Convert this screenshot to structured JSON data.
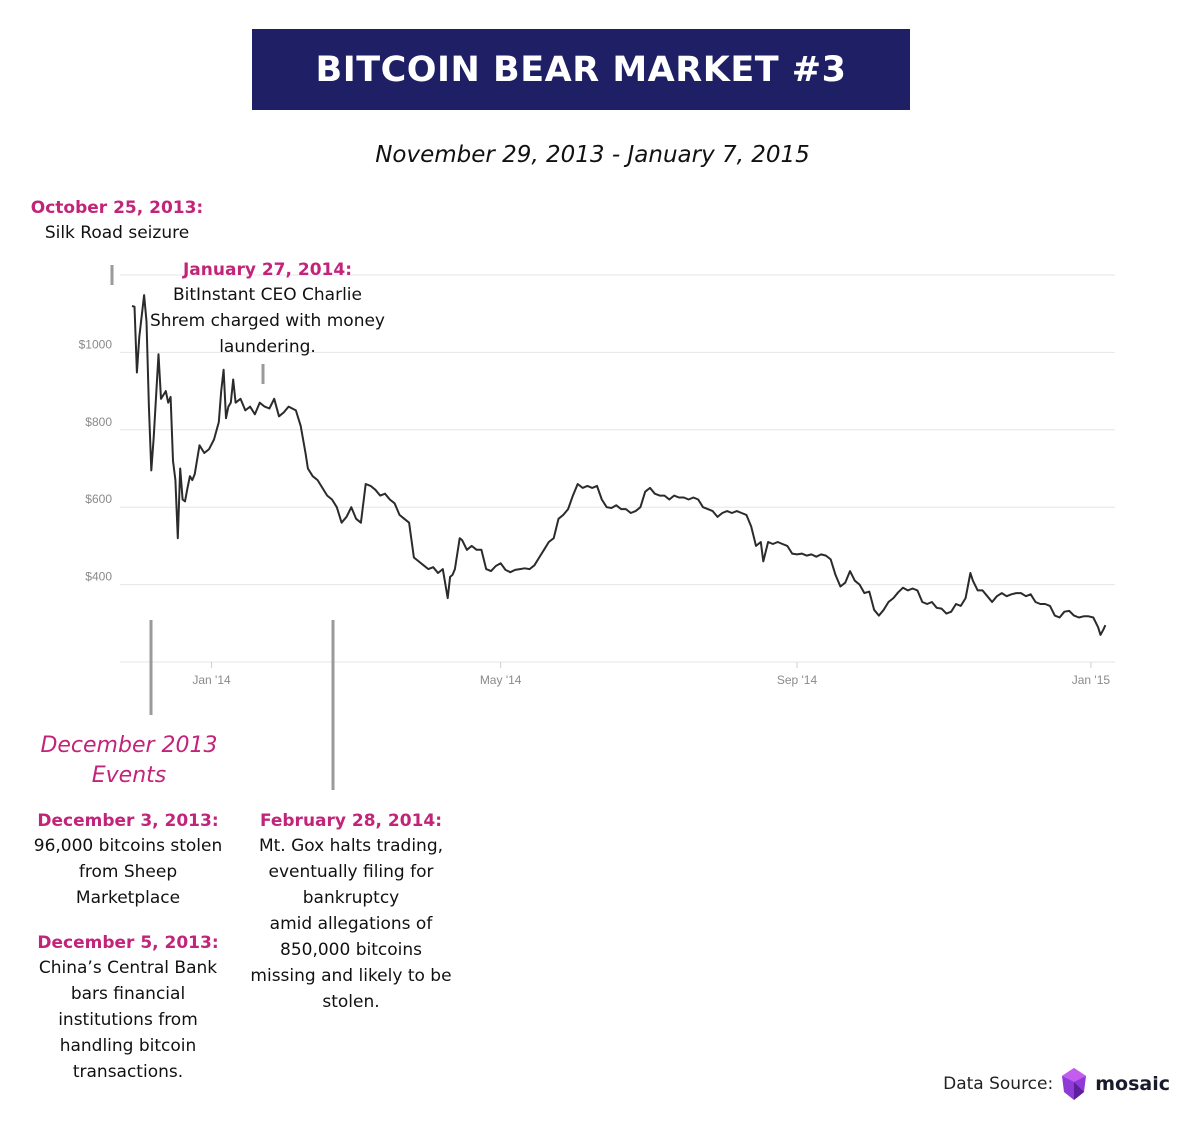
{
  "header": {
    "title": "BITCOIN BEAR MARKET #3",
    "subtitle": "November 29, 2013 - January 7, 2015"
  },
  "annotations": {
    "silk_road": {
      "date": "October 25, 2013:",
      "text": "Silk Road seizure"
    },
    "bitinstant": {
      "date": "January 27, 2014:",
      "text": "BitInstant CEO Charlie\nShrem charged with money\nlaundering."
    },
    "section_title": "December 2013\nEvents",
    "sheep": {
      "date": "December 3, 2013:",
      "text": "96,000 bitcoins stolen\nfrom Sheep\nMarketplace"
    },
    "china": {
      "date": "December 5, 2013:",
      "text": "China’s Central Bank\nbars financial\ninstitutions from\nhandling bitcoin\ntransactions."
    },
    "mtgox": {
      "date": "February 28,  2014:",
      "text": "Mt. Gox halts trading,\neventually filing for\nbankruptcy\namid allegations of\n850,000 bitcoins\nmissing and likely to be\nstolen."
    }
  },
  "footer": {
    "source_label": "Data Source:",
    "brand": "mosaic"
  },
  "colors": {
    "banner": "#1f1f66",
    "accent": "#c2247a",
    "line": "#2b2b2b",
    "grid": "#e6e6e6",
    "marker": "#9a9a9a",
    "logo": "#8e3ad6"
  },
  "chart_data": {
    "type": "line",
    "title": "",
    "xlabel": "",
    "ylabel": "",
    "x_ticks": [
      "Jan '14",
      "May '14",
      "Sep '14",
      "Jan '15"
    ],
    "x_tick_dates": [
      "2014-01-01",
      "2014-05-01",
      "2014-09-01",
      "2015-01-01"
    ],
    "y_ticks": [
      "$400",
      "$600",
      "$800",
      "$1000"
    ],
    "y_tick_values": [
      400,
      600,
      800,
      1000
    ],
    "xlim": [
      "2013-11-24",
      "2015-01-11"
    ],
    "ylim": [
      200,
      1200
    ],
    "grid": true,
    "series": [
      {
        "name": "",
        "points": [
          [
            "2013-11-29",
            1120
          ],
          [
            "2013-11-30",
            1118
          ],
          [
            "2013-12-01",
            948
          ],
          [
            "2013-12-02",
            1040
          ],
          [
            "2013-12-04",
            1148
          ],
          [
            "2013-12-05",
            1080
          ],
          [
            "2013-12-06",
            860
          ],
          [
            "2013-12-07",
            695
          ],
          [
            "2013-12-08",
            780
          ],
          [
            "2013-12-10",
            995
          ],
          [
            "2013-12-11",
            880
          ],
          [
            "2013-12-13",
            900
          ],
          [
            "2013-12-14",
            870
          ],
          [
            "2013-12-15",
            885
          ],
          [
            "2013-12-16",
            720
          ],
          [
            "2013-12-17",
            670
          ],
          [
            "2013-12-18",
            520
          ],
          [
            "2013-12-19",
            700
          ],
          [
            "2013-12-20",
            620
          ],
          [
            "2013-12-21",
            615
          ],
          [
            "2013-12-22",
            650
          ],
          [
            "2013-12-23",
            680
          ],
          [
            "2013-12-24",
            670
          ],
          [
            "2013-12-25",
            685
          ],
          [
            "2013-12-27",
            760
          ],
          [
            "2013-12-29",
            740
          ],
          [
            "2013-12-31",
            750
          ],
          [
            "2014-01-02",
            775
          ],
          [
            "2014-01-04",
            820
          ],
          [
            "2014-01-05",
            900
          ],
          [
            "2014-01-06",
            955
          ],
          [
            "2014-01-07",
            830
          ],
          [
            "2014-01-08",
            860
          ],
          [
            "2014-01-09",
            870
          ],
          [
            "2014-01-10",
            930
          ],
          [
            "2014-01-11",
            870
          ],
          [
            "2014-01-13",
            880
          ],
          [
            "2014-01-15",
            850
          ],
          [
            "2014-01-17",
            860
          ],
          [
            "2014-01-19",
            840
          ],
          [
            "2014-01-21",
            870
          ],
          [
            "2014-01-23",
            860
          ],
          [
            "2014-01-25",
            855
          ],
          [
            "2014-01-27",
            880
          ],
          [
            "2014-01-29",
            835
          ],
          [
            "2014-01-31",
            845
          ],
          [
            "2014-02-02",
            860
          ],
          [
            "2014-02-05",
            850
          ],
          [
            "2014-02-07",
            810
          ],
          [
            "2014-02-09",
            740
          ],
          [
            "2014-02-10",
            700
          ],
          [
            "2014-02-12",
            680
          ],
          [
            "2014-02-14",
            670
          ],
          [
            "2014-02-16",
            650
          ],
          [
            "2014-02-18",
            630
          ],
          [
            "2014-02-20",
            620
          ],
          [
            "2014-02-22",
            600
          ],
          [
            "2014-02-24",
            560
          ],
          [
            "2014-02-26",
            575
          ],
          [
            "2014-02-28",
            600
          ],
          [
            "2014-03-02",
            570
          ],
          [
            "2014-03-04",
            560
          ],
          [
            "2014-03-06",
            660
          ],
          [
            "2014-03-08",
            655
          ],
          [
            "2014-03-10",
            645
          ],
          [
            "2014-03-12",
            630
          ],
          [
            "2014-03-14",
            635
          ],
          [
            "2014-03-16",
            620
          ],
          [
            "2014-03-18",
            610
          ],
          [
            "2014-03-20",
            580
          ],
          [
            "2014-03-22",
            570
          ],
          [
            "2014-03-24",
            560
          ],
          [
            "2014-03-26",
            470
          ],
          [
            "2014-03-28",
            460
          ],
          [
            "2014-03-30",
            450
          ],
          [
            "2014-04-01",
            440
          ],
          [
            "2014-04-03",
            445
          ],
          [
            "2014-04-05",
            430
          ],
          [
            "2014-04-07",
            440
          ],
          [
            "2014-04-09",
            365
          ],
          [
            "2014-04-10",
            420
          ],
          [
            "2014-04-11",
            425
          ],
          [
            "2014-04-12",
            440
          ],
          [
            "2014-04-14",
            520
          ],
          [
            "2014-04-15",
            515
          ],
          [
            "2014-04-17",
            490
          ],
          [
            "2014-04-19",
            500
          ],
          [
            "2014-04-21",
            490
          ],
          [
            "2014-04-23",
            490
          ],
          [
            "2014-04-25",
            440
          ],
          [
            "2014-04-27",
            435
          ],
          [
            "2014-04-29",
            448
          ],
          [
            "2014-05-01",
            455
          ],
          [
            "2014-05-03",
            438
          ],
          [
            "2014-05-05",
            432
          ],
          [
            "2014-05-07",
            438
          ],
          [
            "2014-05-09",
            440
          ],
          [
            "2014-05-11",
            442
          ],
          [
            "2014-05-13",
            440
          ],
          [
            "2014-05-15",
            450
          ],
          [
            "2014-05-17",
            470
          ],
          [
            "2014-05-19",
            490
          ],
          [
            "2014-05-21",
            510
          ],
          [
            "2014-05-23",
            520
          ],
          [
            "2014-05-25",
            570
          ],
          [
            "2014-05-27",
            580
          ],
          [
            "2014-05-29",
            595
          ],
          [
            "2014-05-31",
            630
          ],
          [
            "2014-06-02",
            660
          ],
          [
            "2014-06-04",
            650
          ],
          [
            "2014-06-06",
            655
          ],
          [
            "2014-06-08",
            650
          ],
          [
            "2014-06-10",
            655
          ],
          [
            "2014-06-12",
            620
          ],
          [
            "2014-06-14",
            600
          ],
          [
            "2014-06-16",
            598
          ],
          [
            "2014-06-18",
            605
          ],
          [
            "2014-06-20",
            595
          ],
          [
            "2014-06-22",
            595
          ],
          [
            "2014-06-24",
            585
          ],
          [
            "2014-06-26",
            590
          ],
          [
            "2014-06-28",
            600
          ],
          [
            "2014-06-30",
            640
          ],
          [
            "2014-07-02",
            650
          ],
          [
            "2014-07-04",
            635
          ],
          [
            "2014-07-06",
            630
          ],
          [
            "2014-07-08",
            630
          ],
          [
            "2014-07-10",
            620
          ],
          [
            "2014-07-12",
            630
          ],
          [
            "2014-07-14",
            625
          ],
          [
            "2014-07-16",
            625
          ],
          [
            "2014-07-18",
            620
          ],
          [
            "2014-07-20",
            625
          ],
          [
            "2014-07-22",
            620
          ],
          [
            "2014-07-24",
            600
          ],
          [
            "2014-07-26",
            595
          ],
          [
            "2014-07-28",
            590
          ],
          [
            "2014-07-30",
            575
          ],
          [
            "2014-08-01",
            585
          ],
          [
            "2014-08-03",
            590
          ],
          [
            "2014-08-05",
            585
          ],
          [
            "2014-08-07",
            590
          ],
          [
            "2014-08-09",
            585
          ],
          [
            "2014-08-11",
            580
          ],
          [
            "2014-08-13",
            550
          ],
          [
            "2014-08-15",
            500
          ],
          [
            "2014-08-17",
            510
          ],
          [
            "2014-08-18",
            460
          ],
          [
            "2014-08-20",
            510
          ],
          [
            "2014-08-22",
            505
          ],
          [
            "2014-08-24",
            510
          ],
          [
            "2014-08-26",
            505
          ],
          [
            "2014-08-28",
            500
          ],
          [
            "2014-08-30",
            480
          ],
          [
            "2014-09-01",
            478
          ],
          [
            "2014-09-03",
            480
          ],
          [
            "2014-09-05",
            475
          ],
          [
            "2014-09-07",
            478
          ],
          [
            "2014-09-09",
            472
          ],
          [
            "2014-09-11",
            478
          ],
          [
            "2014-09-13",
            475
          ],
          [
            "2014-09-15",
            465
          ],
          [
            "2014-09-17",
            425
          ],
          [
            "2014-09-19",
            395
          ],
          [
            "2014-09-21",
            405
          ],
          [
            "2014-09-23",
            435
          ],
          [
            "2014-09-25",
            410
          ],
          [
            "2014-09-27",
            400
          ],
          [
            "2014-09-29",
            378
          ],
          [
            "2014-10-01",
            382
          ],
          [
            "2014-10-03",
            335
          ],
          [
            "2014-10-05",
            320
          ],
          [
            "2014-10-07",
            335
          ],
          [
            "2014-10-09",
            355
          ],
          [
            "2014-10-11",
            365
          ],
          [
            "2014-10-13",
            380
          ],
          [
            "2014-10-15",
            392
          ],
          [
            "2014-10-17",
            385
          ],
          [
            "2014-10-19",
            390
          ],
          [
            "2014-10-21",
            385
          ],
          [
            "2014-10-23",
            355
          ],
          [
            "2014-10-25",
            350
          ],
          [
            "2014-10-27",
            355
          ],
          [
            "2014-10-29",
            340
          ],
          [
            "2014-10-31",
            338
          ],
          [
            "2014-11-02",
            325
          ],
          [
            "2014-11-04",
            330
          ],
          [
            "2014-11-06",
            350
          ],
          [
            "2014-11-08",
            345
          ],
          [
            "2014-11-10",
            365
          ],
          [
            "2014-11-12",
            430
          ],
          [
            "2014-11-13",
            410
          ],
          [
            "2014-11-15",
            385
          ],
          [
            "2014-11-17",
            385
          ],
          [
            "2014-11-19",
            370
          ],
          [
            "2014-11-21",
            355
          ],
          [
            "2014-11-23",
            370
          ],
          [
            "2014-11-25",
            378
          ],
          [
            "2014-11-27",
            370
          ],
          [
            "2014-11-29",
            375
          ],
          [
            "2014-12-01",
            378
          ],
          [
            "2014-12-03",
            378
          ],
          [
            "2014-12-05",
            370
          ],
          [
            "2014-12-07",
            375
          ],
          [
            "2014-12-09",
            355
          ],
          [
            "2014-12-11",
            350
          ],
          [
            "2014-12-13",
            350
          ],
          [
            "2014-12-15",
            345
          ],
          [
            "2014-12-17",
            320
          ],
          [
            "2014-12-19",
            315
          ],
          [
            "2014-12-21",
            330
          ],
          [
            "2014-12-23",
            332
          ],
          [
            "2014-12-25",
            320
          ],
          [
            "2014-12-27",
            315
          ],
          [
            "2014-12-29",
            318
          ],
          [
            "2014-12-31",
            318
          ],
          [
            "2015-01-02",
            315
          ],
          [
            "2015-01-04",
            290
          ],
          [
            "2015-01-05",
            270
          ],
          [
            "2015-01-06",
            282
          ],
          [
            "2015-01-07",
            295
          ]
        ]
      }
    ]
  }
}
